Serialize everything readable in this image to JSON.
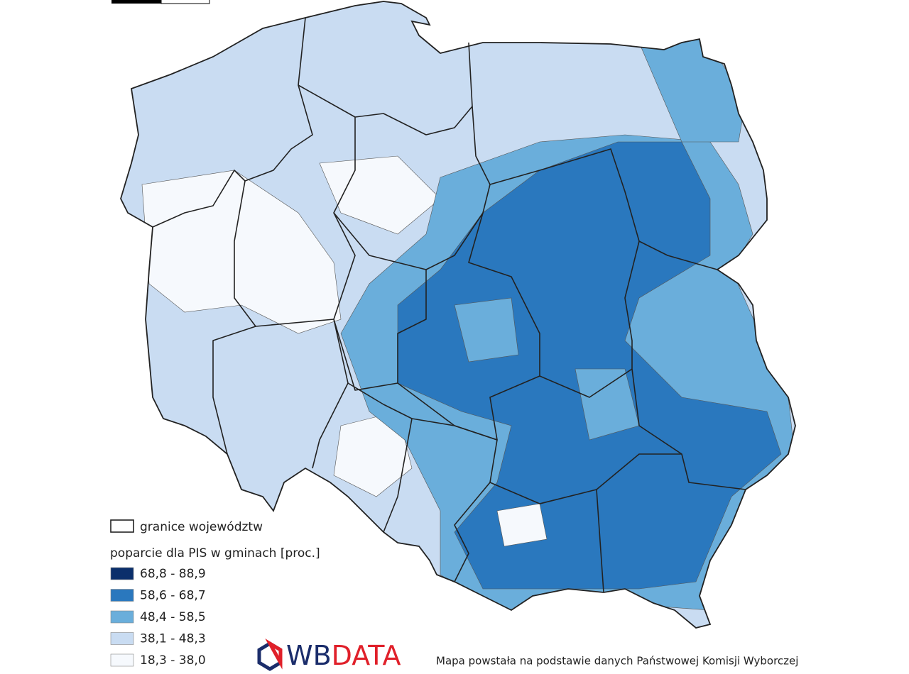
{
  "legend": {
    "border_label": "granice województw",
    "title": "poparcie dla PIS w gminach [proc.]",
    "items": [
      {
        "label": "68,8 - 88,9",
        "color": "#0b2f6b"
      },
      {
        "label": "58,6 - 68,7",
        "color": "#2a78be"
      },
      {
        "label": "48,4 - 58,5",
        "color": "#6aaedb"
      },
      {
        "label": "38,1 - 48,3",
        "color": "#c9dcf2"
      },
      {
        "label": "18,3 - 38,0",
        "color": "#f6f9fd"
      }
    ]
  },
  "logo": {
    "part1": "WB",
    "part2": "DATA"
  },
  "source": "Mapa powstała na podstawie danych Państwowej Komisji Wyborczej"
}
